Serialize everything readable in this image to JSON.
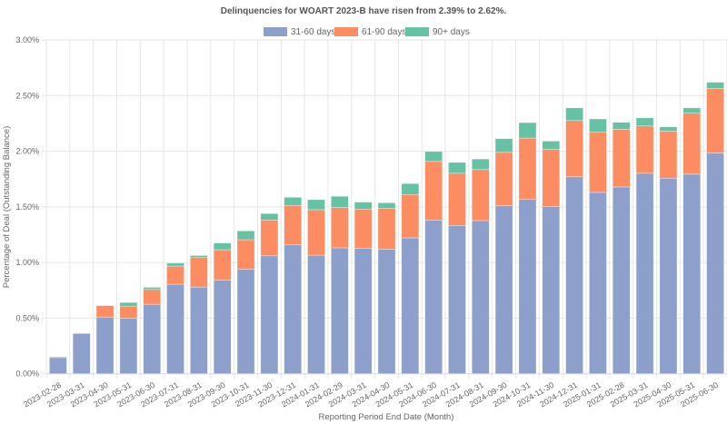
{
  "chart_data": {
    "type": "bar",
    "stacked": true,
    "title": "Delinquencies for WOART 2023-B have risen from 2.39% to 2.62%.",
    "xlabel": "Reporting Period End Date (Month)",
    "ylabel": "Percentage of Deal (Outstanding Balance)",
    "ylim": [
      0,
      3.0
    ],
    "yticks": [
      "0.00%",
      "0.50%",
      "1.00%",
      "1.50%",
      "2.00%",
      "2.50%",
      "3.00%"
    ],
    "ytick_values": [
      0,
      0.5,
      1.0,
      1.5,
      2.0,
      2.5,
      3.0
    ],
    "grid": true,
    "legend_position": "top-center",
    "categories": [
      "2023-02-28",
      "2023-03-31",
      "2023-04-30",
      "2023-05-31",
      "2023-06-30",
      "2023-07-31",
      "2023-08-31",
      "2023-09-30",
      "2023-10-31",
      "2023-11-30",
      "2023-12-31",
      "2024-01-31",
      "2024-02-29",
      "2024-03-31",
      "2024-04-30",
      "2024-05-31",
      "2024-06-30",
      "2024-07-31",
      "2024-08-31",
      "2024-09-30",
      "2024-10-31",
      "2024-11-30",
      "2024-12-31",
      "2025-01-31",
      "2025-02-28",
      "2025-03-31",
      "2025-04-30",
      "2025-05-31",
      "2025-06-30"
    ],
    "series": [
      {
        "name": "31-60 days",
        "color": "#8da0cb",
        "values": [
          0.145,
          0.363,
          0.51,
          0.5,
          0.625,
          0.805,
          0.78,
          0.842,
          0.94,
          1.06,
          1.159,
          1.066,
          1.132,
          1.126,
          1.12,
          1.222,
          1.382,
          1.333,
          1.377,
          1.51,
          1.57,
          1.502,
          1.77,
          1.63,
          1.679,
          1.802,
          1.758,
          1.794,
          1.985
        ]
      },
      {
        "name": "61-90 days",
        "color": "#fc8d62",
        "values": [
          0.008,
          0.003,
          0.103,
          0.108,
          0.133,
          0.163,
          0.264,
          0.273,
          0.265,
          0.322,
          0.354,
          0.409,
          0.362,
          0.354,
          0.366,
          0.389,
          0.526,
          0.469,
          0.458,
          0.48,
          0.548,
          0.515,
          0.506,
          0.54,
          0.518,
          0.425,
          0.423,
          0.548,
          0.58
        ]
      },
      {
        "name": "90+ days",
        "color": "#66c2a5",
        "values": [
          0.0,
          0.0,
          0.0,
          0.033,
          0.019,
          0.027,
          0.019,
          0.06,
          0.079,
          0.058,
          0.073,
          0.09,
          0.101,
          0.063,
          0.051,
          0.098,
          0.09,
          0.098,
          0.095,
          0.123,
          0.139,
          0.074,
          0.114,
          0.12,
          0.063,
          0.073,
          0.038,
          0.048,
          0.055
        ]
      }
    ]
  }
}
